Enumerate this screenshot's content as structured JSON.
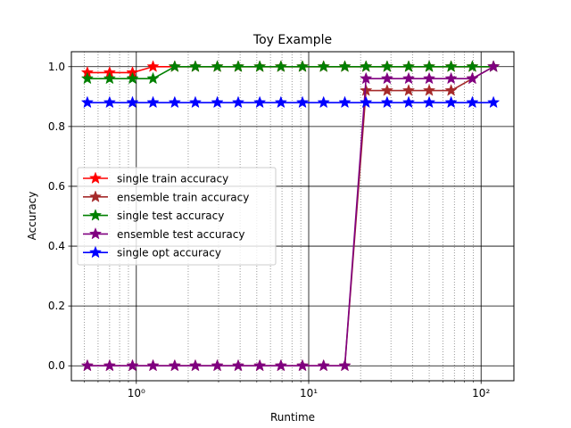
{
  "chart_data": {
    "type": "line",
    "title": "Toy Example",
    "xlabel": "Runtime",
    "ylabel": "Accuracy",
    "xscale": "log",
    "xlim": [
      0.42,
      155
    ],
    "ylim": [
      -0.05,
      1.05
    ],
    "x_major_ticks": [
      1,
      10,
      100
    ],
    "x_tick_labels": [
      "10⁰",
      "10¹",
      "10²"
    ],
    "y_ticks": [
      0.0,
      0.2,
      0.4,
      0.6,
      0.8,
      1.0
    ],
    "y_tick_labels": [
      "0.0",
      "0.2",
      "0.4",
      "0.6",
      "0.8",
      "1.0"
    ],
    "grid": "major and minor on x, major on y",
    "legend_placement": "center-left",
    "x": [
      0.52,
      0.7,
      0.95,
      1.25,
      1.67,
      2.2,
      2.95,
      3.9,
      5.2,
      6.9,
      9.2,
      12.2,
      16.2,
      21.5,
      28.5,
      38,
      50,
      67,
      89,
      118
    ],
    "series": [
      {
        "name": "single train accuracy",
        "color": "#ff0000",
        "values": [
          0.98,
          0.98,
          0.98,
          1.0,
          1.0,
          1.0,
          1.0,
          1.0,
          1.0,
          1.0,
          1.0,
          1.0,
          1.0,
          1.0,
          1.0,
          1.0,
          1.0,
          1.0,
          1.0,
          1.0
        ]
      },
      {
        "name": "ensemble train accuracy",
        "color": "#a52a2a",
        "values": [
          0.0,
          0.0,
          0.0,
          0.0,
          0.0,
          0.0,
          0.0,
          0.0,
          0.0,
          0.0,
          0.0,
          0.0,
          0.0,
          0.92,
          0.92,
          0.92,
          0.92,
          0.92,
          0.96,
          1.0
        ]
      },
      {
        "name": "single test accuracy",
        "color": "#008000",
        "values": [
          0.96,
          0.96,
          0.96,
          0.96,
          1.0,
          1.0,
          1.0,
          1.0,
          1.0,
          1.0,
          1.0,
          1.0,
          1.0,
          1.0,
          1.0,
          1.0,
          1.0,
          1.0,
          1.0,
          1.0
        ]
      },
      {
        "name": "ensemble test accuracy",
        "color": "#800080",
        "values": [
          0.0,
          0.0,
          0.0,
          0.0,
          0.0,
          0.0,
          0.0,
          0.0,
          0.0,
          0.0,
          0.0,
          0.0,
          0.0,
          0.96,
          0.96,
          0.96,
          0.96,
          0.96,
          0.96,
          1.0
        ]
      },
      {
        "name": "single opt accuracy",
        "color": "#0000ff",
        "values": [
          0.88,
          0.88,
          0.88,
          0.88,
          0.88,
          0.88,
          0.88,
          0.88,
          0.88,
          0.88,
          0.88,
          0.88,
          0.88,
          0.88,
          0.88,
          0.88,
          0.88,
          0.88,
          0.88,
          0.88
        ]
      }
    ]
  }
}
